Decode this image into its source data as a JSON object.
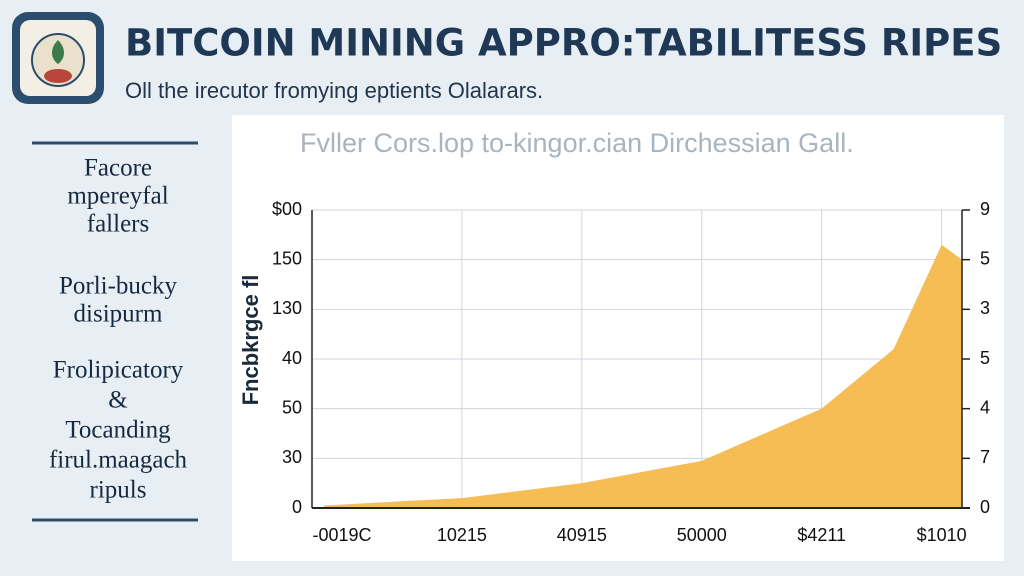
{
  "header": {
    "title": "BITCOIN MINING APPRO:TABILITESS RIPES",
    "subtitle": "Oll the irecutor fromying eptients Olalarars."
  },
  "sidebar": [
    [
      "Facore",
      "mpereyfal",
      "fallers"
    ],
    [
      "Porli-bucky",
      "disipurm"
    ],
    [
      "Frolipicatory",
      "&",
      "Tocanding",
      "firul.maagach",
      "ripuls"
    ]
  ],
  "chart_data": {
    "type": "area",
    "title": "Fvller Cors.lop to-kingor.cian Dirchessian Gall.",
    "y_label": "Fncbkrgce fl",
    "y_labels": [
      "$00",
      "150",
      "130",
      "40",
      "50",
      "30",
      "0"
    ],
    "y2_labels": [
      "9",
      "5",
      "3",
      "5",
      "4",
      "7",
      "0"
    ],
    "x_labels": [
      "-0019C",
      "10215",
      "40915",
      "50000",
      "$4211",
      "$1010"
    ],
    "x": [
      -0.15,
      1,
      2,
      3,
      4,
      4.6,
      5,
      5.17
    ],
    "values": [
      0.05,
      0.2,
      0.5,
      0.95,
      2.0,
      3.2,
      5.3,
      5.0
    ],
    "xlim": [
      -0.25,
      5.17
    ],
    "ylim": [
      0,
      6
    ],
    "color": "#f7bd55",
    "grid": true
  }
}
